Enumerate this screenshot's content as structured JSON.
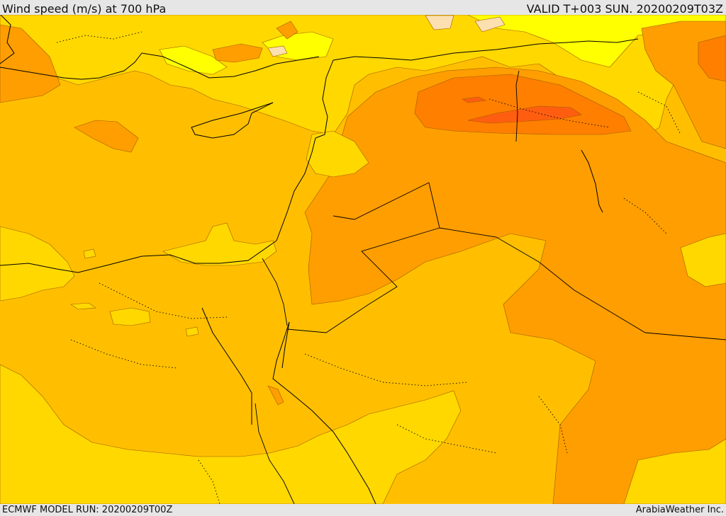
{
  "header": {
    "title": "Wind speed (m/s) at 700 hPa",
    "valid": "VALID T+003 SUN. 20200209T03Z"
  },
  "footer": {
    "model_run": "ECMWF MODEL RUN: 20200209T00Z",
    "credit": "ArabiaWeather Inc."
  },
  "map": {
    "variable": "wind speed",
    "units": "m/s",
    "level": "700 hPa",
    "palette": {
      "very_light": "#fde0b0",
      "light": "#ffff00",
      "yellow": "#ffd800",
      "amber": "#ffbf00",
      "orange": "#ff9e00",
      "dark_orange": "#ff7f00",
      "red_orange": "#ff5e10"
    },
    "coastline_color": "#000000",
    "border_style": "solid black",
    "region_border_style": "dotted black"
  }
}
